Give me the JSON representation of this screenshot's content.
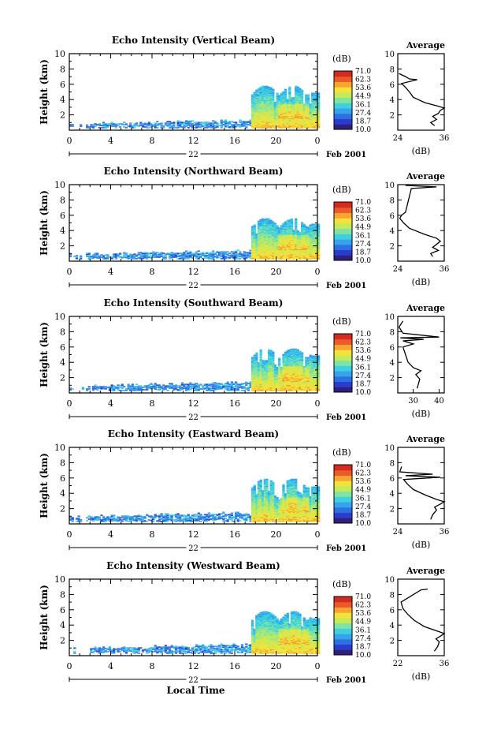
{
  "figure": {
    "xlabel": "Local Time",
    "colorbar_unit": "(dB)",
    "avg_title": "Average",
    "avg_xlabel": "(dB)",
    "month_label": "Feb 2001",
    "colorbar_ticks": [
      "71.0",
      "62.3",
      "53.6",
      "44.9",
      "36.1",
      "27.4",
      "18.7",
      "10.0"
    ],
    "colors": {
      "scale": [
        "#31207a",
        "#2a3ccc",
        "#2e6fe3",
        "#35a4ea",
        "#3fd0e0",
        "#7fe3a3",
        "#c3ea5a",
        "#f3e23a",
        "#f7a431",
        "#ea5a2a",
        "#d52a1f"
      ]
    }
  },
  "chart_data": [
    {
      "type": "heatmap",
      "title": "Echo Intensity (Vertical Beam)",
      "ylabel": "Height (km)",
      "day_label": "22",
      "x_ticks": [
        "0",
        "4",
        "8",
        "12",
        "16",
        "20",
        "0"
      ],
      "y_ticks": [
        "2",
        "4",
        "6",
        "8",
        "10"
      ],
      "xlim": [
        0,
        24
      ],
      "ylim": [
        0,
        10
      ],
      "clim": [
        10.0,
        71.0
      ],
      "echo_band": {
        "quiet_top_km": [
          1.2,
          0.4
        ],
        "storm_start_h": 17.5,
        "storm_top_km": 5.8
      },
      "average_profile": {
        "x_ticks": [
          "24",
          "36"
        ],
        "xlim": [
          24,
          36
        ],
        "ylim": [
          0,
          10
        ],
        "points": [
          [
            33.5,
            0.6
          ],
          [
            32.5,
            1.0
          ],
          [
            34,
            1.4
          ],
          [
            33,
            1.8
          ],
          [
            34.5,
            2.2
          ],
          [
            35,
            2.6
          ],
          [
            36,
            2.9
          ],
          [
            34,
            3.2
          ],
          [
            31,
            3.6
          ],
          [
            28,
            4.3
          ],
          [
            27,
            5.0
          ],
          [
            26,
            5.6
          ],
          [
            25,
            6.1
          ],
          [
            29,
            6.6
          ],
          [
            27,
            6.7
          ],
          [
            26,
            7.0
          ],
          [
            24.3,
            7.4
          ]
        ]
      }
    },
    {
      "type": "heatmap",
      "title": "Echo Intensity (Northward Beam)",
      "ylabel": "Height (km)",
      "day_label": "22",
      "x_ticks": [
        "0",
        "4",
        "8",
        "12",
        "16",
        "20",
        "0"
      ],
      "y_ticks": [
        "2",
        "4",
        "6",
        "8",
        "10"
      ],
      "xlim": [
        0,
        24
      ],
      "ylim": [
        0,
        10
      ],
      "clim": [
        10.0,
        71.0
      ],
      "echo_band": {
        "quiet_top_km": [
          1.3,
          0.6
        ],
        "storm_start_h": 17.5,
        "storm_top_km": 5.6
      },
      "average_profile": {
        "x_ticks": [
          "24",
          "36"
        ],
        "xlim": [
          24,
          36
        ],
        "ylim": [
          0,
          10
        ],
        "points": [
          [
            33,
            0.6
          ],
          [
            32.5,
            1.0
          ],
          [
            34.5,
            1.4
          ],
          [
            33,
            1.8
          ],
          [
            34,
            2.2
          ],
          [
            35,
            2.6
          ],
          [
            34,
            3.0
          ],
          [
            31,
            3.5
          ],
          [
            27,
            4.3
          ],
          [
            25.5,
            5.0
          ],
          [
            24.5,
            5.6
          ],
          [
            25,
            6.0
          ],
          [
            26,
            6.4
          ],
          [
            27.5,
            9.5
          ],
          [
            34,
            9.7
          ],
          [
            26,
            9.9
          ]
        ]
      }
    },
    {
      "type": "heatmap",
      "title": "Echo Intensity (Southward Beam)",
      "ylabel": "Height (km)",
      "day_label": "22",
      "x_ticks": [
        "0",
        "4",
        "8",
        "12",
        "16",
        "20",
        "0"
      ],
      "y_ticks": [
        "2",
        "4",
        "6",
        "8",
        "10"
      ],
      "xlim": [
        0,
        24
      ],
      "ylim": [
        0,
        10
      ],
      "clim": [
        10.0,
        71.0
      ],
      "echo_band": {
        "quiet_top_km": [
          1.3,
          0.5
        ],
        "storm_start_h": 17.5,
        "storm_top_km": 5.8
      },
      "average_profile": {
        "x_ticks": [
          "30",
          "40"
        ],
        "xlim": [
          24,
          42
        ],
        "ylim": [
          0,
          10
        ],
        "points": [
          [
            31.5,
            0.6
          ],
          [
            32,
            1.2
          ],
          [
            32.5,
            1.8
          ],
          [
            31,
            2.4
          ],
          [
            33,
            2.9
          ],
          [
            30,
            3.3
          ],
          [
            28,
            4.0
          ],
          [
            27,
            5.0
          ],
          [
            26,
            6.0
          ],
          [
            30,
            6.4
          ],
          [
            26,
            6.8
          ],
          [
            34,
            7.0
          ],
          [
            25,
            7.2
          ],
          [
            40,
            7.3
          ],
          [
            26,
            7.8
          ],
          [
            24.5,
            8.6
          ],
          [
            26,
            9.4
          ]
        ]
      }
    },
    {
      "type": "heatmap",
      "title": "Echo Intensity (Eastward Beam)",
      "ylabel": "Height (km)",
      "day_label": "22",
      "x_ticks": [
        "0",
        "4",
        "8",
        "12",
        "16",
        "20",
        "0"
      ],
      "y_ticks": [
        "2",
        "4",
        "6",
        "8",
        "10"
      ],
      "xlim": [
        0,
        24
      ],
      "ylim": [
        0,
        10
      ],
      "clim": [
        10.0,
        71.0
      ],
      "echo_band": {
        "quiet_top_km": [
          1.4,
          0.6
        ],
        "storm_start_h": 17.5,
        "storm_top_km": 5.9
      },
      "average_profile": {
        "x_ticks": [
          "24",
          "36"
        ],
        "xlim": [
          24,
          36
        ],
        "ylim": [
          0,
          10
        ],
        "points": [
          [
            32.5,
            0.6
          ],
          [
            33,
            1.2
          ],
          [
            34,
            1.8
          ],
          [
            33.5,
            2.2
          ],
          [
            35,
            2.6
          ],
          [
            36,
            2.9
          ],
          [
            34,
            3.2
          ],
          [
            31,
            3.8
          ],
          [
            28,
            4.5
          ],
          [
            26.5,
            5.2
          ],
          [
            25.5,
            5.8
          ],
          [
            35,
            6.1
          ],
          [
            26,
            6.3
          ],
          [
            33,
            6.5
          ],
          [
            24.5,
            6.8
          ],
          [
            25,
            7.5
          ]
        ]
      }
    },
    {
      "type": "heatmap",
      "title": "Echo Intensity (Westward Beam)",
      "ylabel": "Height (km)",
      "day_label": "22",
      "x_ticks": [
        "0",
        "4",
        "8",
        "12",
        "16",
        "20",
        "0"
      ],
      "y_ticks": [
        "2",
        "4",
        "6",
        "8",
        "10"
      ],
      "xlim": [
        0,
        24
      ],
      "ylim": [
        0,
        10
      ],
      "clim": [
        10.0,
        71.0
      ],
      "echo_band": {
        "quiet_top_km": [
          1.4,
          0.6
        ],
        "storm_start_h": 17.5,
        "storm_top_km": 5.8
      },
      "average_profile": {
        "x_ticks": [
          "22",
          "36"
        ],
        "xlim": [
          22,
          36
        ],
        "ylim": [
          0,
          10
        ],
        "points": [
          [
            33,
            0.6
          ],
          [
            34,
            1.2
          ],
          [
            34.5,
            1.8
          ],
          [
            33.5,
            2.2
          ],
          [
            35,
            2.6
          ],
          [
            36,
            2.9
          ],
          [
            34,
            3.2
          ],
          [
            30,
            3.8
          ],
          [
            27,
            4.6
          ],
          [
            25,
            5.4
          ],
          [
            23.5,
            6.2
          ],
          [
            23,
            7.0
          ],
          [
            29,
            8.6
          ],
          [
            31,
            8.7
          ]
        ]
      }
    }
  ]
}
